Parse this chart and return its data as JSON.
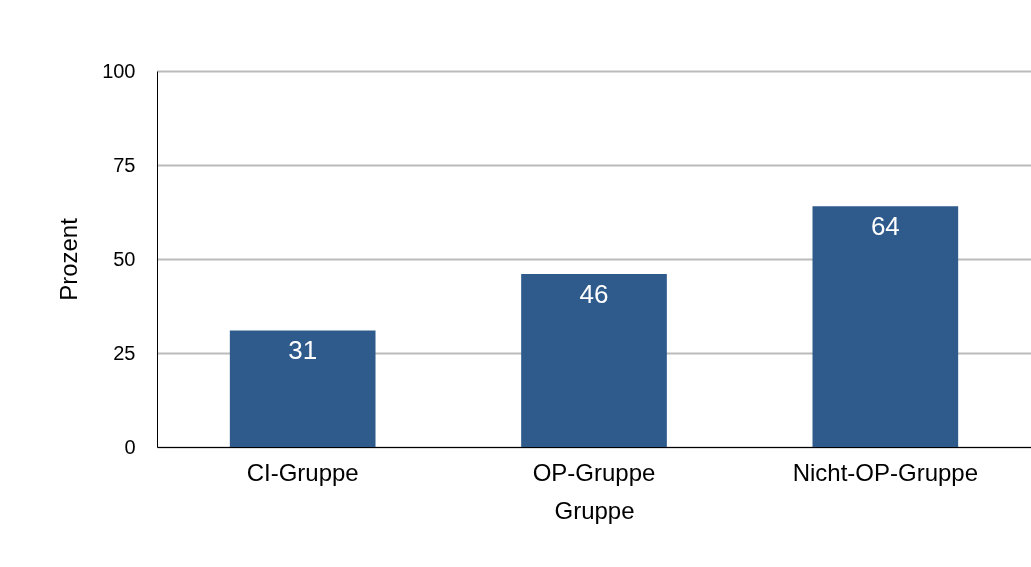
{
  "chart_data": {
    "type": "bar",
    "xlabel": "Gruppe",
    "ylabel": "Prozent",
    "categories": [
      "CI-Gruppe",
      "OP-Gruppe",
      "Nicht-OP-Gruppe"
    ],
    "values": [
      31,
      46,
      64
    ],
    "color": "#2e5a8c",
    "ylim": [
      0,
      100
    ],
    "yticks": [
      0,
      25,
      50,
      75,
      100
    ],
    "grid": "y",
    "data_labels": true
  }
}
